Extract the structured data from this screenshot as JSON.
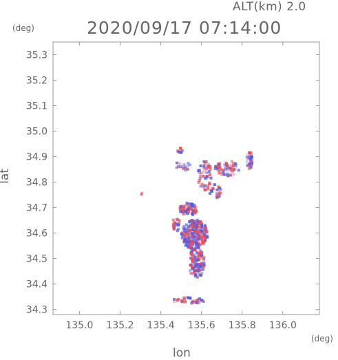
{
  "header": {
    "altitude_label": "ALT(km) 2.0",
    "timestamp": "2020/09/17 07:14:00"
  },
  "chart_data": {
    "type": "heatmap",
    "title": "2020/09/17 07:14:00",
    "subtitle": "ALT(km) 2.0",
    "xlabel": "lon",
    "ylabel": "lat",
    "x_unit": "(deg)",
    "y_unit": "(deg)",
    "xlim": [
      134.87,
      136.18
    ],
    "ylim": [
      34.28,
      35.35
    ],
    "x_ticks": [
      "135.0",
      "135.2",
      "135.4",
      "135.6",
      "135.8",
      "136.0"
    ],
    "y_ticks": [
      "34.3",
      "34.4",
      "34.5",
      "34.6",
      "34.7",
      "34.8",
      "34.9",
      "35.0",
      "35.1",
      "35.2",
      "35.3"
    ],
    "grid": false,
    "colors": {
      "positive": "#e8505a",
      "negative": "#4a5ae8",
      "axis": "#999999"
    },
    "clusters": [
      {
        "lon": 135.56,
        "lat": 34.6,
        "rlon": 0.065,
        "rlat": 0.06,
        "n": 260
      },
      {
        "lon": 135.57,
        "lat": 34.49,
        "rlon": 0.04,
        "rlat": 0.06,
        "n": 130
      },
      {
        "lon": 135.53,
        "lat": 34.7,
        "rlon": 0.045,
        "rlat": 0.025,
        "n": 70
      },
      {
        "lon": 135.61,
        "lat": 34.83,
        "rlon": 0.035,
        "rlat": 0.06,
        "n": 55
      },
      {
        "lon": 135.72,
        "lat": 34.86,
        "rlon": 0.06,
        "rlat": 0.03,
        "n": 55
      },
      {
        "lon": 135.83,
        "lat": 34.89,
        "rlon": 0.015,
        "rlat": 0.035,
        "n": 30
      },
      {
        "lon": 135.49,
        "lat": 34.93,
        "rlon": 0.015,
        "rlat": 0.01,
        "n": 12
      },
      {
        "lon": 135.5,
        "lat": 34.87,
        "rlon": 0.04,
        "rlat": 0.02,
        "n": 18
      },
      {
        "lon": 135.66,
        "lat": 34.77,
        "rlon": 0.03,
        "rlat": 0.03,
        "n": 25
      },
      {
        "lon": 135.53,
        "lat": 34.34,
        "rlon": 0.08,
        "rlat": 0.012,
        "n": 40
      },
      {
        "lon": 135.47,
        "lat": 34.64,
        "rlon": 0.02,
        "rlat": 0.03,
        "n": 25
      },
      {
        "lon": 135.3,
        "lat": 34.76,
        "rlon": 0.004,
        "rlat": 0.003,
        "n": 2
      }
    ]
  }
}
